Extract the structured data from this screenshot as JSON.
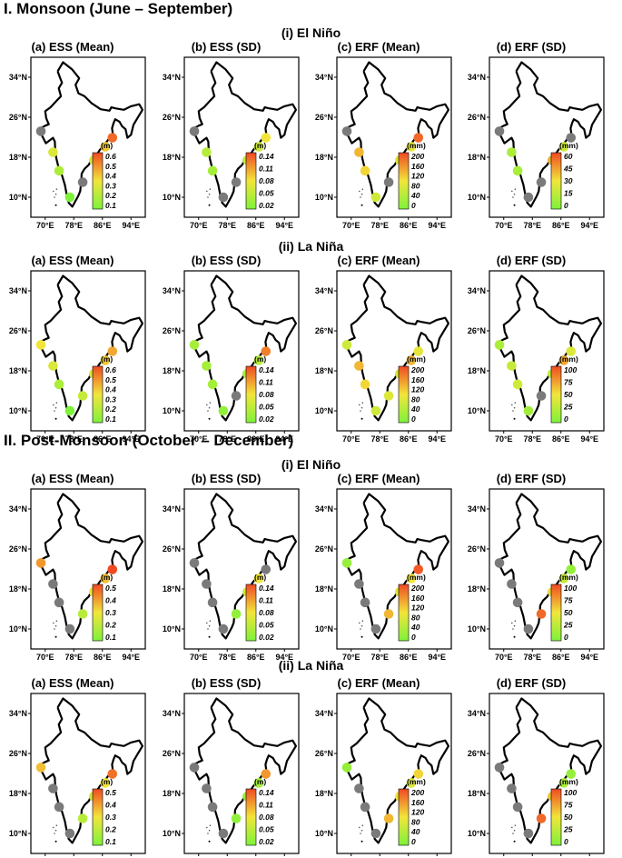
{
  "sections": [
    {
      "title": "I. Monsoon (June – September)",
      "rows": [
        {
          "label": "(i) El Niño",
          "panels": [
            {
              "title": "(a) ESS (Mean)",
              "unit": "(m)",
              "ticks": [
                "0.6",
                "0.5",
                "0.4",
                "0.3",
                "0.2",
                "0.1"
              ],
              "values": [
                null,
                0.3,
                0.2,
                0.1,
                null,
                0.3,
                0.4,
                0.55
              ]
            },
            {
              "title": "(b) ESS (SD)",
              "unit": "(m)",
              "ticks": [
                "0.14",
                "0.11",
                "0.08",
                "0.05",
                "0.02"
              ],
              "values": [
                null,
                0.05,
                0.04,
                null,
                null,
                0.05,
                0.06,
                0.08
              ]
            },
            {
              "title": "(c) ERF (Mean)",
              "unit": "(mm)",
              "ticks": [
                "200",
                "160",
                "120",
                "80",
                "40",
                "0"
              ],
              "values": [
                null,
                130,
                110,
                70,
                null,
                80,
                90,
                180
              ]
            },
            {
              "title": "(d) ERF (SD)",
              "unit": "(mm)",
              "ticks": [
                "60",
                "45",
                "30",
                "15",
                "0"
              ],
              "values": [
                null,
                12,
                10,
                null,
                null,
                40,
                20,
                null
              ]
            }
          ]
        },
        {
          "label": "(ii) La Niña",
          "panels": [
            {
              "title": "(a) ESS (Mean)",
              "unit": "(m)",
              "ticks": [
                "0.6",
                "0.5",
                "0.4",
                "0.3",
                "0.2",
                "0.1"
              ],
              "values": [
                0.35,
                0.3,
                0.2,
                0.1,
                0.25,
                0.3,
                0.4,
                0.45
              ]
            },
            {
              "title": "(b) ESS (SD)",
              "unit": "(m)",
              "ticks": [
                "0.14",
                "0.11",
                "0.08",
                "0.05",
                "0.02"
              ],
              "values": [
                0.04,
                0.04,
                0.04,
                0.03,
                null,
                0.04,
                0.05,
                0.12
              ]
            },
            {
              "title": "(c) ERF (Mean)",
              "unit": "(mm)",
              "ticks": [
                "200",
                "160",
                "120",
                "80",
                "40",
                "0"
              ],
              "values": [
                70,
                130,
                110,
                70,
                80,
                80,
                130,
                90
              ]
            },
            {
              "title": "(d) ERF (SD)",
              "unit": "(mm)",
              "ticks": [
                "100",
                "75",
                "50",
                "25",
                "0"
              ],
              "values": [
                20,
                30,
                35,
                15,
                null,
                30,
                70,
                40
              ]
            }
          ]
        }
      ]
    },
    {
      "title": "II.  Post-Monsoon (October – December)",
      "rows": [
        {
          "label": "(i) El Niño",
          "panels": [
            {
              "title": "(a) ESS (Mean)",
              "unit": "(m)",
              "ticks": [
                "0.5",
                "0.4",
                "0.3",
                "0.2",
                "0.1"
              ],
              "values": [
                0.4,
                null,
                null,
                null,
                0.2,
                0.3,
                0.35,
                0.5
              ]
            },
            {
              "title": "(b) ESS (SD)",
              "unit": "(m)",
              "ticks": [
                "0.14",
                "0.11",
                "0.08",
                "0.05",
                "0.02"
              ],
              "values": [
                null,
                null,
                null,
                null,
                0.03,
                0.06,
                0.08,
                null
              ]
            },
            {
              "title": "(c) ERF (Mean)",
              "unit": "(mm)",
              "ticks": [
                "200",
                "160",
                "120",
                "80",
                "40",
                "0"
              ],
              "values": [
                20,
                null,
                null,
                null,
                130,
                80,
                100,
                190
              ]
            },
            {
              "title": "(d) ERF (SD)",
              "unit": "(mm)",
              "ticks": [
                "100",
                "75",
                "50",
                "25",
                "0"
              ],
              "values": [
                null,
                null,
                null,
                null,
                90,
                55,
                30,
                10
              ]
            }
          ]
        },
        {
          "label": "(ii) La Niña",
          "panels": [
            {
              "title": "(a) ESS (Mean)",
              "unit": "(m)",
              "ticks": [
                "0.5",
                "0.4",
                "0.3",
                "0.2",
                "0.1"
              ],
              "values": [
                0.35,
                null,
                null,
                null,
                0.2,
                0.25,
                0.3,
                0.45
              ]
            },
            {
              "title": "(b) ESS (SD)",
              "unit": "(m)",
              "ticks": [
                "0.14",
                "0.11",
                "0.08",
                "0.05",
                "0.02"
              ],
              "values": [
                null,
                null,
                null,
                null,
                0.03,
                0.03,
                0.04,
                0.11
              ]
            },
            {
              "title": "(c) ERF (Mean)",
              "unit": "(mm)",
              "ticks": [
                "200",
                "160",
                "120",
                "80",
                "40",
                "0"
              ],
              "values": [
                20,
                null,
                null,
                null,
                130,
                100,
                80,
                110
              ]
            },
            {
              "title": "(d) ERF (SD)",
              "unit": "(mm)",
              "ticks": [
                "100",
                "75",
                "50",
                "25",
                "0"
              ],
              "values": [
                null,
                null,
                null,
                null,
                90,
                60,
                20,
                10
              ]
            }
          ]
        }
      ]
    }
  ],
  "axis": {
    "x_ticks": [
      "70°E",
      "78°E",
      "86°E",
      "94°E"
    ],
    "y_ticks": [
      "34°N",
      "26°N",
      "18°N",
      "10°N"
    ]
  },
  "colors": {
    "low": "#7ef23a",
    "mid": "#f2e53a",
    "high": "#f04a23",
    "no_data": "#7a7a7a",
    "outline": "#000000"
  }
}
